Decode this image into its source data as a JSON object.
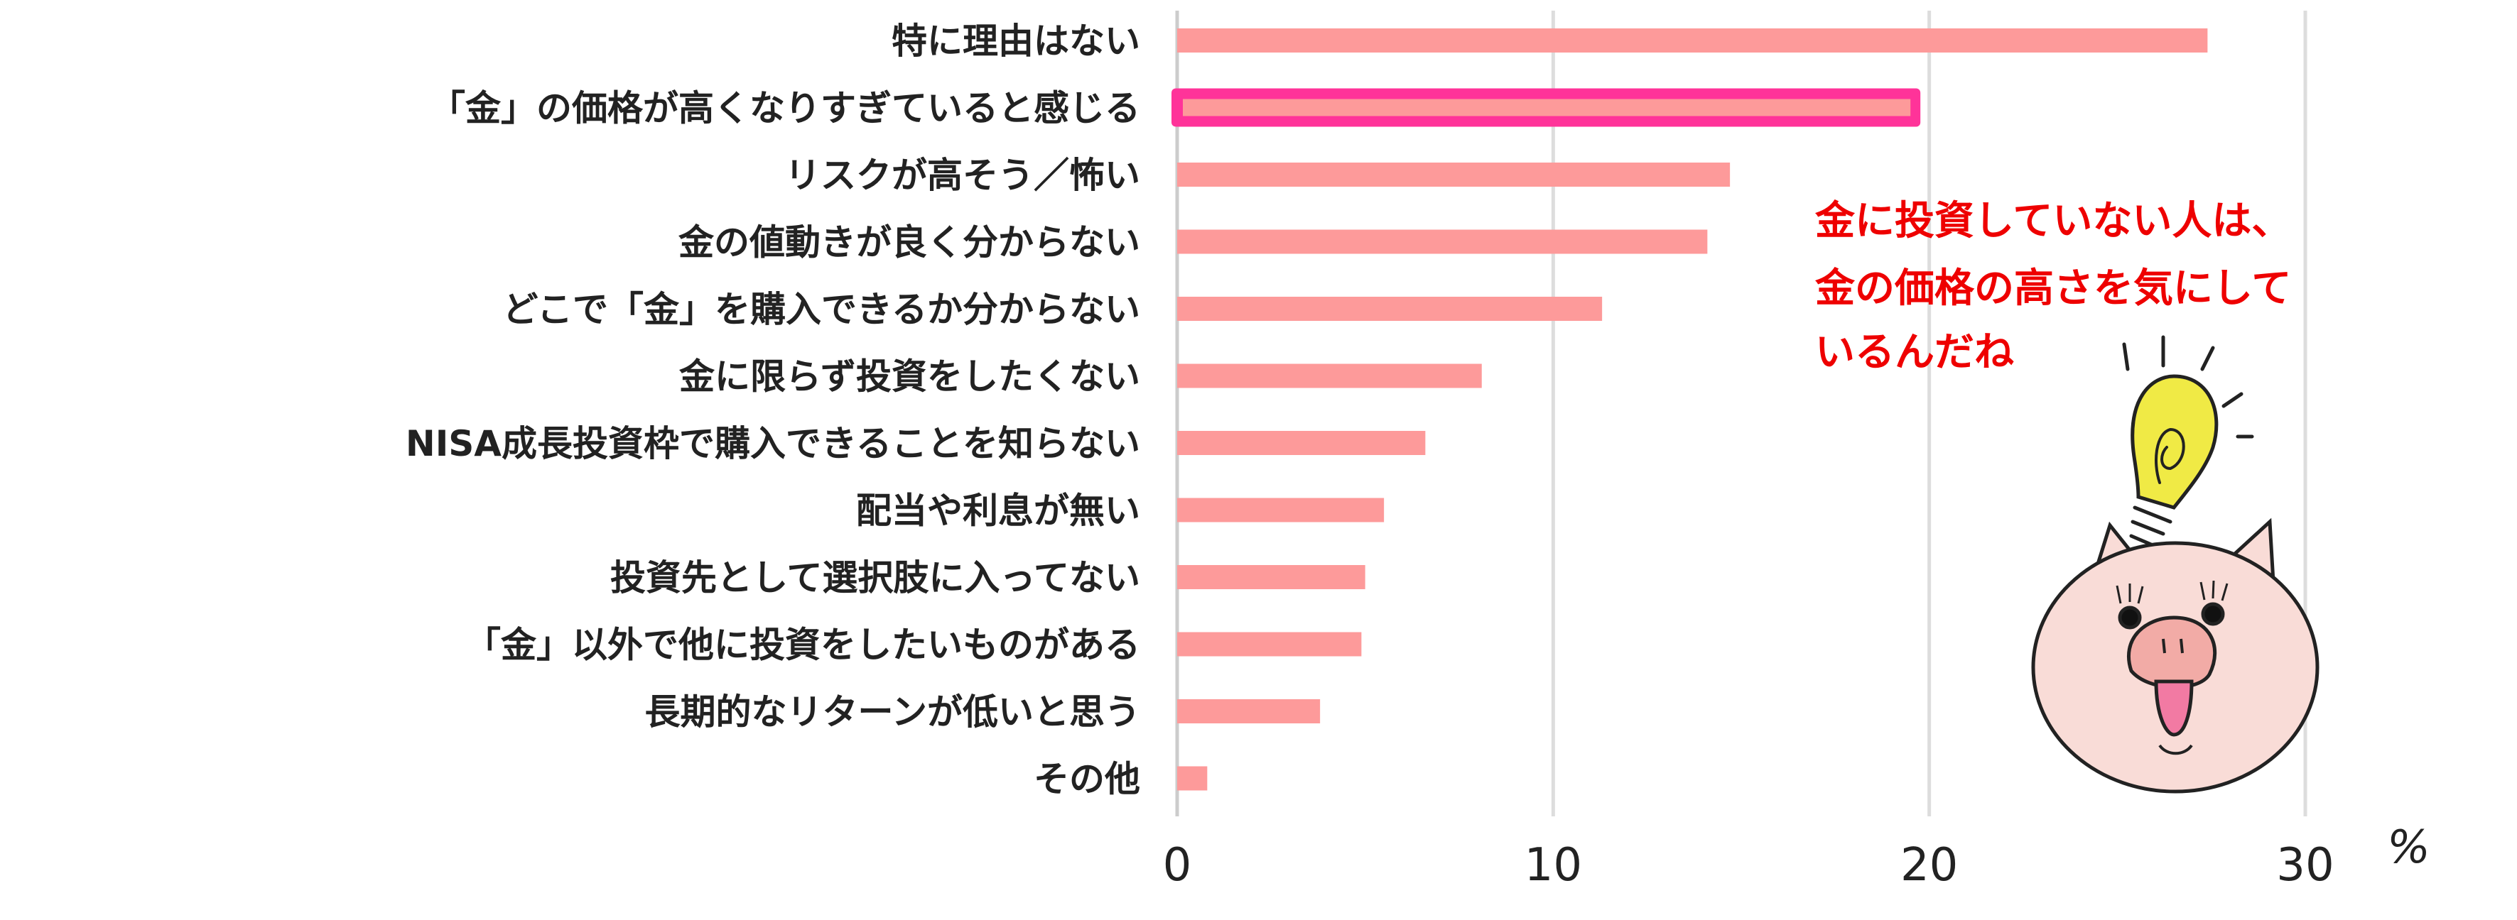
{
  "chart_data": {
    "type": "bar",
    "orientation": "horizontal",
    "categories": [
      "特に理由はない",
      "「金」の価格が高くなりすぎていると感じる",
      "リスクが高そう／怖い",
      "金の値動きが良く分からない",
      "どこで「金」を購入できるか分からない",
      "金に限らず投資をしたくない",
      "NISA成長投資枠で購入できることを知らない",
      "配当や利息が無い",
      "投資先として選択肢に入ってない",
      "「金」以外で他に投資をしたいものがある",
      "長期的なリターンが低いと思う",
      "その他"
    ],
    "values": [
      27.4,
      19.5,
      14.7,
      14.1,
      11.3,
      8.1,
      6.6,
      5.5,
      5.0,
      4.9,
      3.8,
      0.8
    ],
    "highlighted_index": 1,
    "xlim": [
      0,
      30
    ],
    "xticks": [
      "0",
      "10",
      "20",
      "30"
    ],
    "xunit": "%",
    "grid": true,
    "colors": {
      "bar": "#fd9a9a",
      "highlight": "#ff3399",
      "grid": "#dddddd",
      "note": "#ee0000"
    }
  },
  "annotation": {
    "lines": [
      "金に投資していない人は、",
      "金の価格の高さを気にして",
      "いるんだね"
    ],
    "illustration": "pig-with-lightbulb"
  }
}
